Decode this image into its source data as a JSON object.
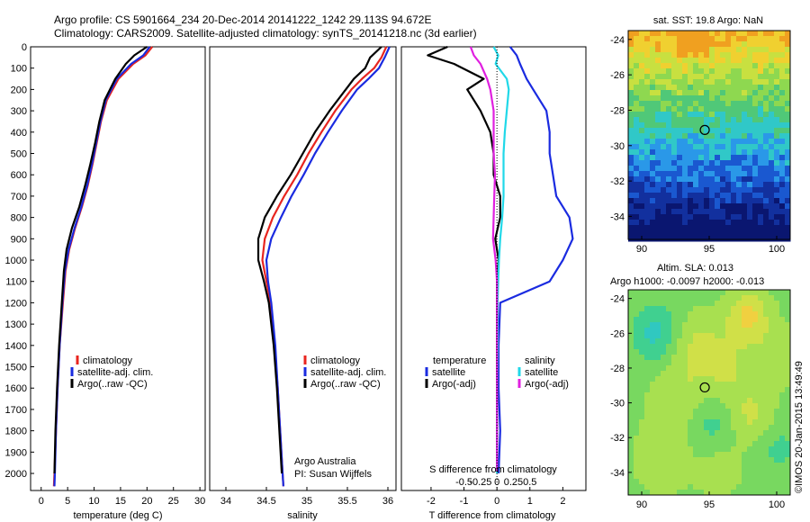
{
  "header": {
    "line1": "Argo profile: CS 5901664_234 20-Dec-2014 20141222_1242 29.113S 94.672E",
    "line2": "Climatology: CARS2009. Satellite-adjusted climatology: synTS_20141218.nc (3d earlier)"
  },
  "legend_left": {
    "items": [
      "climatology",
      "satellite-adj. clim.",
      "Argo(..raw -QC)"
    ]
  },
  "legend_diff": {
    "temp_title": "temperature",
    "sal_title": "salinity",
    "items_t": [
      "satellite",
      "Argo(-adj)"
    ],
    "items_s": [
      "satellite",
      "Argo(-adj)"
    ]
  },
  "credits": {
    "line1": "Argo Australia",
    "line2": "PI: Susan Wijffels",
    "watermark": "©IMOS 20-Jan-2015 13:49:49"
  },
  "maps": {
    "sst_title": "sat. SST: 19.8 Argo: NaN",
    "sla_title1": "Altim. SLA: 0.013",
    "sla_title2": "Argo h1000: -0.0097 h2000: -0.013",
    "lat_ticks": [
      "-24",
      "-26",
      "-28",
      "-30",
      "-32",
      "-34"
    ],
    "lon_ticks": [
      "90",
      "95",
      "100"
    ]
  },
  "chart_data": [
    {
      "type": "line",
      "xlabel": "temperature (deg C)",
      "xlim": [
        -2,
        31
      ],
      "xticks": [
        "0",
        "5",
        "10",
        "15",
        "20",
        "25",
        "30"
      ],
      "ylim": [
        0,
        2080
      ],
      "yticks": [
        "0",
        "100",
        "200",
        "300",
        "400",
        "500",
        "600",
        "700",
        "800",
        "900",
        "1000",
        "1100",
        "1200",
        "1300",
        "1400",
        "1500",
        "1600",
        "1700",
        "1800",
        "1900",
        "2000"
      ],
      "colors": {
        "climatology": "#e8251f",
        "satellite": "#1a2be0",
        "argo": "#000000"
      },
      "depth": [
        0,
        40,
        80,
        150,
        250,
        350,
        450,
        550,
        650,
        750,
        850,
        950,
        1050,
        1200,
        1400,
        1600,
        1800,
        2000,
        2060
      ],
      "series": [
        {
          "key": "climatology",
          "values": [
            21,
            19.7,
            17.4,
            14.6,
            12.4,
            11.3,
            10.5,
            9.7,
            8.8,
            7.7,
            6.4,
            5.3,
            4.6,
            4.1,
            3.5,
            3.1,
            2.8,
            2.5,
            2.4
          ]
        },
        {
          "key": "satellite",
          "values": [
            20.5,
            19.3,
            17.0,
            14.3,
            12.2,
            11.2,
            10.4,
            9.6,
            8.7,
            7.6,
            6.3,
            5.2,
            4.5,
            4.0,
            3.5,
            3.1,
            2.8,
            2.6,
            2.5
          ]
        },
        {
          "key": "argo",
          "values": [
            20.0,
            17.6,
            16.0,
            14.0,
            12.0,
            11.0,
            10.2,
            9.3,
            8.3,
            7.2,
            5.8,
            4.8,
            4.3,
            3.9,
            3.4,
            3.0,
            2.7,
            2.5,
            null
          ]
        }
      ]
    },
    {
      "type": "line",
      "xlabel": "salinity",
      "xlim": [
        33.8,
        36.1
      ],
      "xticks": [
        "34",
        "34.5",
        "35",
        "35.5",
        "36"
      ],
      "ylim": [
        0,
        2080
      ],
      "depth": [
        0,
        50,
        100,
        150,
        200,
        300,
        400,
        500,
        600,
        700,
        800,
        900,
        1000,
        1100,
        1200,
        1400,
        1600,
        1800,
        2000,
        2060
      ],
      "series": [
        {
          "key": "climatology",
          "values": [
            35.98,
            35.92,
            35.83,
            35.68,
            35.55,
            35.35,
            35.18,
            35.02,
            34.88,
            34.72,
            34.58,
            34.48,
            34.45,
            34.5,
            34.55,
            34.6,
            34.64,
            34.67,
            34.7,
            34.71
          ]
        },
        {
          "key": "satellite",
          "values": [
            36.02,
            35.96,
            35.89,
            35.76,
            35.62,
            35.43,
            35.26,
            35.1,
            34.96,
            34.81,
            34.68,
            34.56,
            34.5,
            34.52,
            34.56,
            34.61,
            34.64,
            34.67,
            34.7,
            34.71
          ]
        },
        {
          "key": "argo",
          "values": [
            35.92,
            35.78,
            35.72,
            35.58,
            35.48,
            35.28,
            35.1,
            34.95,
            34.8,
            34.63,
            34.48,
            34.4,
            34.4,
            34.47,
            34.53,
            34.59,
            34.63,
            34.66,
            34.69,
            null
          ]
        }
      ]
    },
    {
      "type": "line",
      "xlabel": "T difference from climatology",
      "xlabel_top": "S difference from climatology",
      "xlim": [
        -2.9,
        2.7
      ],
      "xticks": [
        "-2",
        "-1",
        "0",
        "1",
        "2"
      ],
      "xticks_top_values": [
        -0.5,
        -0.25,
        0,
        0.25,
        0.5
      ],
      "xticks_top": [
        "-0.5",
        "-0.25",
        "0",
        "0.25",
        "0.5"
      ],
      "ylim": [
        0,
        2080
      ],
      "colors": {
        "t_sat": "#1a2be0",
        "t_argo": "#000000",
        "s_sat": "#20d8e8",
        "s_argo": "#e020e0"
      },
      "series": [
        {
          "key": "t_sat",
          "depth": [
            0,
            40,
            80,
            150,
            200,
            300,
            400,
            500,
            600,
            700,
            800,
            900,
            1000,
            1100,
            1200,
            1400,
            1600,
            1800,
            2000
          ],
          "values": [
            0.4,
            0.6,
            0.7,
            0.9,
            1.1,
            1.5,
            1.6,
            1.6,
            1.7,
            1.8,
            2.2,
            2.3,
            2.0,
            1.6,
            0.1,
            0.05,
            0.05,
            0.1,
            0.05
          ]
        },
        {
          "key": "t_argo",
          "depth": [
            0,
            40,
            80,
            150,
            200,
            300,
            400,
            500,
            600,
            700,
            800,
            900,
            1000,
            1100,
            1200,
            1400,
            1600,
            1800,
            1990
          ],
          "values": [
            -1.5,
            -2.1,
            -1.3,
            -0.4,
            -0.9,
            -0.5,
            -0.2,
            -0.1,
            -0.1,
            0.1,
            0.1,
            -0.05,
            0.05,
            0.0,
            0.0,
            0.0,
            0.0,
            0.0,
            0.0
          ]
        },
        {
          "key": "s_sat",
          "depth": [
            0,
            40,
            80,
            150,
            200,
            300,
            400,
            500,
            600,
            700,
            800,
            900,
            1000,
            1100,
            1200,
            1400,
            1600,
            1800,
            2000
          ],
          "values": [
            -0.05,
            0.02,
            -0.02,
            0.15,
            0.18,
            0.15,
            0.12,
            0.1,
            0.1,
            0.1,
            0.08,
            0.05,
            0.03,
            0.02,
            0.01,
            0.01,
            0.0,
            0.0,
            0.0
          ]
        },
        {
          "key": "s_argo",
          "depth": [
            0,
            40,
            80,
            150,
            200,
            300,
            400,
            500,
            600,
            700,
            800,
            900,
            1000,
            1100,
            1200,
            1400,
            1600,
            1800,
            1990
          ],
          "values": [
            -0.4,
            -0.35,
            -0.25,
            -0.15,
            -0.1,
            -0.05,
            -0.05,
            -0.05,
            -0.03,
            -0.04,
            -0.05,
            -0.06,
            -0.02,
            0.0,
            0.0,
            0.0,
            0.0,
            0.0,
            0.0
          ]
        }
      ]
    },
    {
      "type": "heatmap",
      "title": "sat. SST: 19.8 Argo: NaN",
      "xlim": [
        89,
        101
      ],
      "ylim": [
        -35.3,
        -23.5
      ],
      "marker": {
        "lon": 94.672,
        "lat": -29.113
      }
    },
    {
      "type": "heatmap",
      "title": "Altim. SLA: 0.013",
      "xlim": [
        89,
        101
      ],
      "ylim": [
        -35.3,
        -23.5
      ],
      "marker": {
        "lon": 94.672,
        "lat": -29.113
      }
    }
  ]
}
